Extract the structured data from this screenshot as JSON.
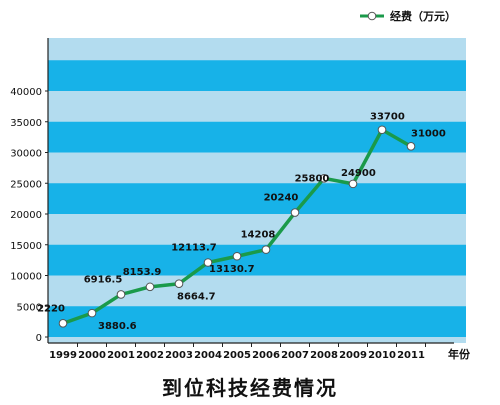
{
  "chart_data": {
    "type": "line",
    "title": "到位科技经费情况",
    "xlabel": "年份",
    "ylabel": "",
    "categories": [
      "1999",
      "2000",
      "2001",
      "2002",
      "2003",
      "2004",
      "2005",
      "2006",
      "2007",
      "2008",
      "2009",
      "2010",
      "2011"
    ],
    "series": [
      {
        "name": "经费（万元）",
        "values": [
          2220,
          3880.6,
          6916.5,
          8153.9,
          8664.7,
          12113.7,
          13130.7,
          14208,
          20240,
          25800,
          24900,
          33700,
          31000
        ]
      }
    ],
    "data_labels": [
      "2220",
      "3880.6",
      "6916.5",
      "8153.9",
      "8664.7",
      "12113.7",
      "13130.7",
      "14208",
      "20240",
      "25800",
      "24900",
      "33700",
      "31000"
    ],
    "yticks": [
      0,
      5000,
      10000,
      15000,
      20000,
      25000,
      30000,
      35000,
      40000
    ],
    "ylim": [
      0,
      40000
    ],
    "grid": "horizontal bands",
    "legend_position": "top-right",
    "colors": {
      "line": "#1a9a4a",
      "band_dark": "#17b2e8",
      "band_light": "#b3dcef",
      "marker_fill": "#ffffff"
    }
  }
}
